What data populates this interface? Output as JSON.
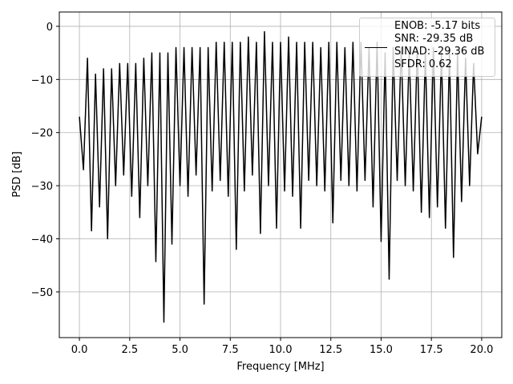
{
  "chart_data": {
    "type": "line",
    "xlabel": "Frequency [MHz]",
    "ylabel": "PSD [dB]",
    "x": [
      0,
      0.2,
      0.4,
      0.6,
      0.8,
      1,
      1.2,
      1.4,
      1.6,
      1.8,
      2,
      2.2,
      2.4,
      2.6,
      2.8,
      3,
      3.2,
      3.4,
      3.6,
      3.8,
      4,
      4.2,
      4.4,
      4.6,
      4.8,
      5,
      5.2,
      5.4,
      5.6,
      5.8,
      6,
      6.2,
      6.4,
      6.6,
      6.8,
      7,
      7.2,
      7.4,
      7.6,
      7.8,
      8,
      8.2,
      8.4,
      8.6,
      8.8,
      9,
      9.2,
      9.4,
      9.6,
      9.8,
      10,
      10.2,
      10.4,
      10.6,
      10.8,
      11,
      11.2,
      11.4,
      11.6,
      11.8,
      12,
      12.2,
      12.4,
      12.6,
      12.8,
      13,
      13.2,
      13.4,
      13.6,
      13.8,
      14,
      14.2,
      14.4,
      14.6,
      14.8,
      15,
      15.2,
      15.4,
      15.6,
      15.8,
      16,
      16.2,
      16.4,
      16.6,
      16.8,
      17,
      17.2,
      17.4,
      17.6,
      17.8,
      18,
      18.2,
      18.4,
      18.6,
      18.8,
      19,
      19.2,
      19.4,
      19.6,
      19.8,
      20
    ],
    "series": [
      {
        "name": "ENOB: -5.17 bits\nSNR: -29.35 dB\nSINAD: -29.36 dB\nSFDR: 0.62",
        "color": "#000000",
        "values": [
          -17,
          -27,
          -6,
          -38.5,
          -9,
          -34,
          -8,
          -40,
          -8,
          -30,
          -7,
          -28,
          -7,
          -32,
          -7,
          -36,
          -6,
          -30,
          -5,
          -44.3,
          -5,
          -55.7,
          -5,
          -41,
          -4,
          -30,
          -4,
          -32,
          -4,
          -28,
          -4,
          -52.3,
          -4,
          -31,
          -3,
          -29,
          -3,
          -32,
          -3,
          -42,
          -3,
          -31,
          -2,
          -28,
          -3,
          -39,
          -1,
          -30,
          -3,
          -38,
          -3,
          -31,
          -2,
          -32,
          -3,
          -38,
          -3,
          -29,
          -3,
          -30,
          -4,
          -31,
          -3,
          -37,
          -3,
          -29,
          -4,
          -30,
          -3,
          -31,
          -3,
          -29,
          -4,
          -34,
          -3,
          -40.5,
          -5,
          -47.6,
          -4,
          -29,
          -4,
          -30,
          -5,
          -31,
          -4,
          -35,
          -5,
          -36,
          -4,
          -34,
          -5,
          -38,
          -5,
          -43.5,
          -5,
          -33,
          -6,
          -30,
          -7,
          -24,
          -17
        ]
      }
    ],
    "xlim": [
      -1,
      21
    ],
    "ylim": [
      -58.6,
      2.7
    ],
    "xticks": [
      {
        "value": 0,
        "label": "0.0"
      },
      2.5,
      {
        "value": 5,
        "label": "5.0"
      },
      7.5,
      {
        "value": 10,
        "label": "10.0"
      },
      12.5,
      {
        "value": 15,
        "label": "15.0"
      },
      17.5,
      {
        "value": 20,
        "label": "20.0"
      }
    ],
    "yticks": [
      {
        "value": -50,
        "label": "−50"
      },
      {
        "value": -40,
        "label": "−40"
      },
      {
        "value": -30,
        "label": "−30"
      },
      {
        "value": -20,
        "label": "−20"
      },
      {
        "value": -10,
        "label": "−10"
      },
      0
    ],
    "grid": true,
    "legend": "upper right"
  }
}
